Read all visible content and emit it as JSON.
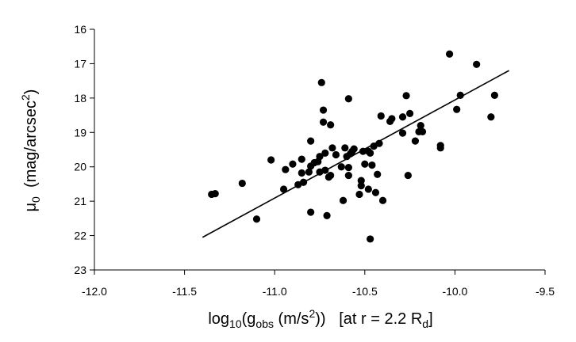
{
  "chart_data": {
    "type": "scatter",
    "title": "",
    "xlabel": {
      "base": "log",
      "base_sub": "10",
      "paren_open": "(g",
      "g_sub": "obs",
      "unit_main": " (m/s",
      "unit_sup": "2",
      "unit_close": "))",
      "bracket": "   [at r = 2.2 R",
      "r_sub": "d",
      "bracket_close": "]"
    },
    "ylabel": {
      "mu": "μ",
      "mu_sub": "0",
      "unit_open": "  (mag/arcsec",
      "unit_sup": "2",
      "unit_close": ")"
    },
    "xlim": [
      -12.0,
      -9.5
    ],
    "ylim": [
      23,
      16
    ],
    "y_inverted": true,
    "x_ticks": [
      -12.0,
      -11.5,
      -11.0,
      -10.5,
      -10.0,
      -9.5
    ],
    "x_tick_labels": [
      "-12.0",
      "-11.5",
      "-11.0",
      "-10.5",
      "-10.0",
      "-9.5"
    ],
    "y_ticks": [
      16,
      17,
      18,
      19,
      20,
      21,
      22,
      23
    ],
    "y_tick_labels": [
      "16",
      "17",
      "18",
      "19",
      "20",
      "21",
      "22",
      "23"
    ],
    "grid": false,
    "marker_color": "#000000",
    "fit_line": {
      "x": [
        -11.4,
        -9.7
      ],
      "y": [
        22.05,
        17.2
      ]
    },
    "points": [
      [
        -11.35,
        20.8
      ],
      [
        -11.33,
        20.78
      ],
      [
        -11.18,
        20.48
      ],
      [
        -11.1,
        21.52
      ],
      [
        -11.02,
        19.8
      ],
      [
        -10.95,
        20.65
      ],
      [
        -10.94,
        20.08
      ],
      [
        -10.9,
        19.92
      ],
      [
        -10.87,
        20.52
      ],
      [
        -10.85,
        20.18
      ],
      [
        -10.85,
        19.78
      ],
      [
        -10.84,
        20.45
      ],
      [
        -10.81,
        20.15
      ],
      [
        -10.8,
        19.98
      ],
      [
        -10.8,
        19.25
      ],
      [
        -10.8,
        21.32
      ],
      [
        -10.78,
        19.88
      ],
      [
        -10.76,
        19.85
      ],
      [
        -10.75,
        20.15
      ],
      [
        -10.75,
        19.7
      ],
      [
        -10.74,
        17.55
      ],
      [
        -10.73,
        18.7
      ],
      [
        -10.73,
        18.35
      ],
      [
        -10.72,
        20.1
      ],
      [
        -10.72,
        19.6
      ],
      [
        -10.71,
        21.42
      ],
      [
        -10.7,
        20.3
      ],
      [
        -10.69,
        20.25
      ],
      [
        -10.69,
        18.78
      ],
      [
        -10.68,
        19.45
      ],
      [
        -10.66,
        19.65
      ],
      [
        -10.63,
        20.0
      ],
      [
        -10.62,
        20.98
      ],
      [
        -10.61,
        19.45
      ],
      [
        -10.6,
        19.7
      ],
      [
        -10.59,
        20.02
      ],
      [
        -10.59,
        20.25
      ],
      [
        -10.59,
        18.02
      ],
      [
        -10.58,
        19.62
      ],
      [
        -10.57,
        19.55
      ],
      [
        -10.56,
        19.48
      ],
      [
        -10.53,
        20.8
      ],
      [
        -10.52,
        20.4
      ],
      [
        -10.52,
        20.55
      ],
      [
        -10.51,
        19.55
      ],
      [
        -10.5,
        19.92
      ],
      [
        -10.48,
        19.55
      ],
      [
        -10.48,
        20.65
      ],
      [
        -10.47,
        22.1
      ],
      [
        -10.47,
        19.6
      ],
      [
        -10.46,
        19.95
      ],
      [
        -10.45,
        19.4
      ],
      [
        -10.44,
        20.75
      ],
      [
        -10.43,
        20.22
      ],
      [
        -10.42,
        19.32
      ],
      [
        -10.41,
        18.52
      ],
      [
        -10.4,
        20.98
      ],
      [
        -10.36,
        18.68
      ],
      [
        -10.35,
        18.6
      ],
      [
        -10.29,
        18.55
      ],
      [
        -10.29,
        19.02
      ],
      [
        -10.27,
        17.93
      ],
      [
        -10.26,
        20.25
      ],
      [
        -10.25,
        18.45
      ],
      [
        -10.22,
        19.25
      ],
      [
        -10.2,
        18.98
      ],
      [
        -10.19,
        18.8
      ],
      [
        -10.18,
        18.98
      ],
      [
        -10.08,
        19.45
      ],
      [
        -10.08,
        19.38
      ],
      [
        -10.03,
        16.72
      ],
      [
        -9.99,
        18.33
      ],
      [
        -9.97,
        17.92
      ],
      [
        -9.88,
        17.02
      ],
      [
        -9.8,
        18.55
      ],
      [
        -9.78,
        17.92
      ]
    ]
  }
}
